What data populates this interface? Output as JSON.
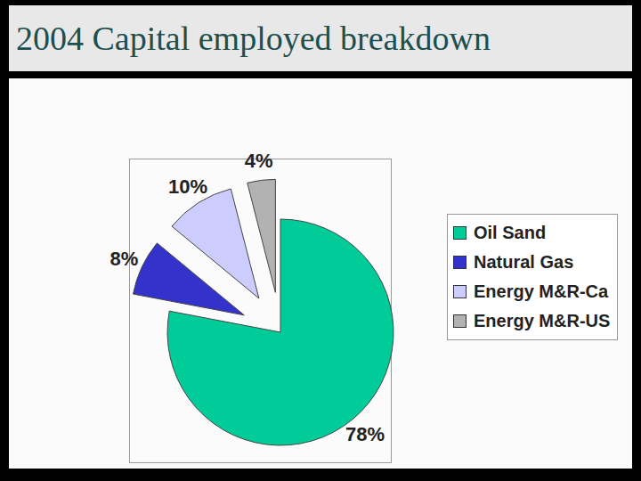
{
  "chart_data": {
    "type": "pie",
    "title": "2004 Capital employed breakdown",
    "categories": [
      "Oil Sand",
      "Natural Gas",
      "Energy M&R-Ca",
      "Energy M&R-US"
    ],
    "values": [
      78,
      8,
      10,
      4
    ],
    "value_labels": [
      "78%",
      "8%",
      "10%",
      "4%"
    ],
    "colors": [
      "#00cc99",
      "#3333cc",
      "#ccccff",
      "#b2b2b2"
    ],
    "data_labels": true,
    "legend": "right"
  }
}
